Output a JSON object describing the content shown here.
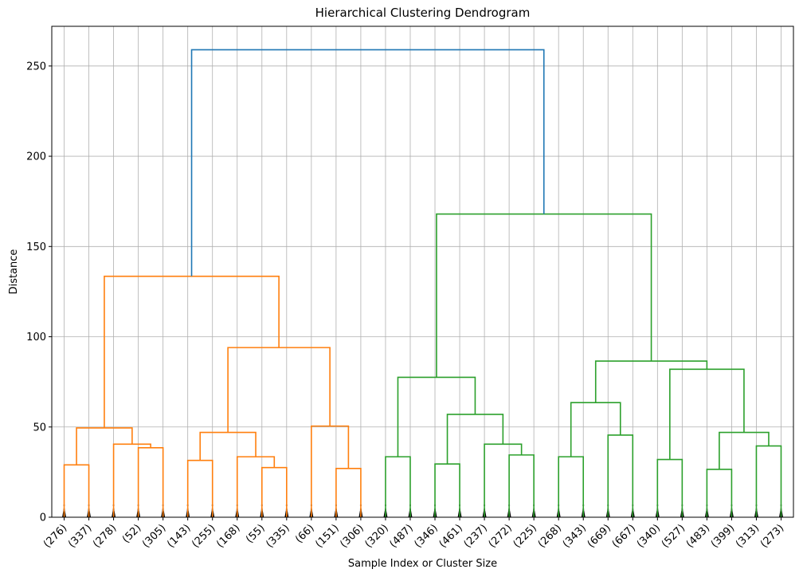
{
  "chart_data": {
    "type": "dendrogram",
    "title": "Hierarchical Clustering Dendrogram",
    "xlabel": "Sample Index or Cluster Size",
    "ylabel": "Distance",
    "ylim": [
      0,
      272
    ],
    "yticks": [
      0,
      50,
      100,
      150,
      200,
      250
    ],
    "grid": true,
    "colors": {
      "link_above": "#1f77b4",
      "cluster_1": "#ff7f0e",
      "cluster_2": "#2ca02c",
      "leaf_marks": "#000000"
    },
    "leaves": [
      "(276)",
      "(337)",
      "(278)",
      "(52)",
      "(305)",
      "(143)",
      "(255)",
      "(168)",
      "(55)",
      "(335)",
      "(66)",
      "(151)",
      "(306)",
      "(320)",
      "(487)",
      "(346)",
      "(461)",
      "(237)",
      "(272)",
      "(225)",
      "(268)",
      "(343)",
      "(669)",
      "(667)",
      "(340)",
      "(527)",
      "(483)",
      "(399)",
      "(313)",
      "(273)"
    ],
    "merges": [
      {
        "a": 0,
        "b": 1,
        "height": 29,
        "cluster": "cluster_1"
      },
      {
        "a": 3,
        "b": 4,
        "height": 38.5,
        "cluster": "cluster_1"
      },
      {
        "a": 2,
        "b": "m1",
        "height": 40.5,
        "cluster": "cluster_1"
      },
      {
        "a": "m0",
        "b": "m2",
        "height": 49.5,
        "cluster": "cluster_1"
      },
      {
        "a": 5,
        "b": 6,
        "height": 31.5,
        "cluster": "cluster_1"
      },
      {
        "a": 8,
        "b": 9,
        "height": 27.5,
        "cluster": "cluster_1"
      },
      {
        "a": 7,
        "b": "m5",
        "height": 33.5,
        "cluster": "cluster_1"
      },
      {
        "a": "m4",
        "b": "m6",
        "height": 47,
        "cluster": "cluster_1"
      },
      {
        "a": 11,
        "b": 12,
        "height": 27,
        "cluster": "cluster_1"
      },
      {
        "a": 10,
        "b": "m8",
        "height": 50.5,
        "cluster": "cluster_1"
      },
      {
        "a": "m7",
        "b": "m9",
        "height": 94,
        "cluster": "cluster_1"
      },
      {
        "a": "m3",
        "b": "m10",
        "height": 133.5,
        "cluster": "cluster_1"
      },
      {
        "a": 13,
        "b": 14,
        "height": 33.5,
        "cluster": "cluster_2"
      },
      {
        "a": 15,
        "b": 16,
        "height": 29.5,
        "cluster": "cluster_2"
      },
      {
        "a": 18,
        "b": 19,
        "height": 34.5,
        "cluster": "cluster_2"
      },
      {
        "a": 17,
        "b": "m14",
        "height": 40.5,
        "cluster": "cluster_2"
      },
      {
        "a": "m13",
        "b": "m15",
        "height": 57,
        "cluster": "cluster_2"
      },
      {
        "a": "m12",
        "b": "m16",
        "height": 77.5,
        "cluster": "cluster_2"
      },
      {
        "a": 20,
        "b": 21,
        "height": 33.5,
        "cluster": "cluster_2"
      },
      {
        "a": 22,
        "b": 23,
        "height": 45.5,
        "cluster": "cluster_2"
      },
      {
        "a": "m18",
        "b": "m19",
        "height": 63.5,
        "cluster": "cluster_2"
      },
      {
        "a": 24,
        "b": 25,
        "height": 32,
        "cluster": "cluster_2"
      },
      {
        "a": 26,
        "b": 27,
        "height": 26.5,
        "cluster": "cluster_2"
      },
      {
        "a": 28,
        "b": 29,
        "height": 39.5,
        "cluster": "cluster_2"
      },
      {
        "a": "m22",
        "b": "m23",
        "height": 47,
        "cluster": "cluster_2"
      },
      {
        "a": "m21",
        "b": "m24",
        "height": 82,
        "cluster": "cluster_2"
      },
      {
        "a": "m20",
        "b": "m25",
        "height": 86.5,
        "cluster": "cluster_2"
      },
      {
        "a": "m17",
        "b": "m26",
        "height": 168,
        "cluster": "cluster_2"
      },
      {
        "a": "m11",
        "b": "m27",
        "height": 259,
        "cluster": "link_above"
      }
    ]
  }
}
